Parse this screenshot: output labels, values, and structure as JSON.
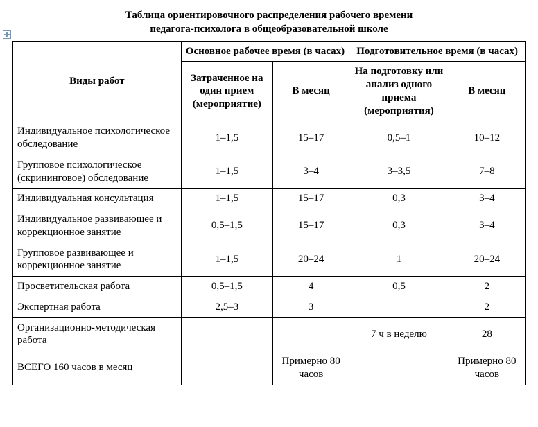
{
  "title_line1": "Таблица ориентировочного распределения рабочего времени",
  "title_line2": "педагога-психолога в общеобразовательной школе",
  "headers": {
    "col_work": "Виды работ",
    "main_time": "Основное рабочее время (в часах)",
    "prep_time": "Подготовительное время (в часах)",
    "per_session": "Затраченное на один прием (мероприятие)",
    "per_month_main": "В месяц",
    "prep_per_session": "На подготовку или анализ одного приема (мероприятия)",
    "per_month_prep": "В месяц"
  },
  "rows": [
    {
      "label": "Индивидуальное психологическое обследование",
      "a": "1–1,5",
      "b": "15–17",
      "c": "0,5–1",
      "d": "10–12"
    },
    {
      "label": "Групповое психологическое (скрининговое) обследование",
      "a": "1–1,5",
      "b": "3–4",
      "c": "3–3,5",
      "d": "7–8"
    },
    {
      "label": "Индивидуальная консультация",
      "a": "1–1,5",
      "b": "15–17",
      "c": "0,3",
      "d": "3–4"
    },
    {
      "label": "Индивидуальное развивающее и коррекционное занятие",
      "a": "0,5–1,5",
      "b": "15–17",
      "c": "0,3",
      "d": "3–4"
    },
    {
      "label": "Групповое развивающее и коррекционное занятие",
      "a": "1–1,5",
      "b": "20–24",
      "c": "1",
      "d": "20–24"
    },
    {
      "label": "Просветительская работа",
      "a": "0,5–1,5",
      "b": "4",
      "c": "0,5",
      "d": "2"
    },
    {
      "label": "Экспертная работа",
      "a": "2,5–3",
      "b": "3",
      "c": "",
      "d": "2"
    },
    {
      "label": "Организационно-методическая работа",
      "a": "",
      "b": "",
      "c": "7 ч в неделю",
      "d": "28"
    },
    {
      "label": "ВСЕГО 160 часов в месяц",
      "a": "",
      "b": "Примерно 80 часов",
      "c": "",
      "d": "Примерно 80 часов"
    }
  ]
}
